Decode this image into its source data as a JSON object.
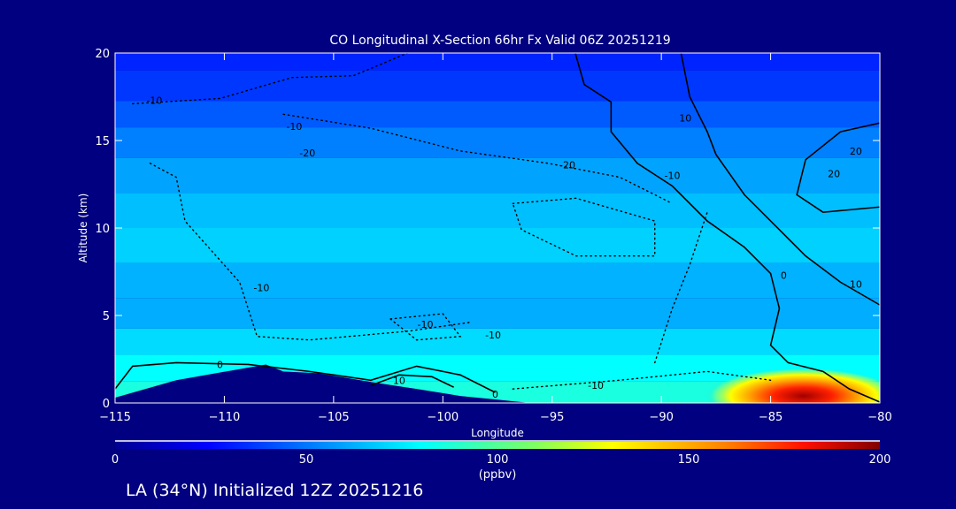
{
  "chart_data": {
    "type": "heatmap",
    "title": "CO Longitudinal X-Section 66hr  Fx Valid 06Z 20251219",
    "xlabel": "Longitude",
    "ylabel": "Altitude (km)",
    "xlim": [
      -115,
      -80
    ],
    "ylim": [
      0,
      20
    ],
    "xticks": [
      "-115",
      "-110",
      "-105",
      "-100",
      "-95",
      "-90",
      "-85",
      "-80"
    ],
    "xtick_values": [
      -115,
      -110,
      -105,
      -100,
      -95,
      -90,
      -85,
      -80
    ],
    "yticks": [
      "0",
      "5",
      "10",
      "15",
      "20"
    ],
    "ytick_values": [
      0,
      5,
      10,
      15,
      20
    ],
    "colorbar": {
      "label": "(ppbv)",
      "range": [
        0,
        200
      ],
      "ticks": [
        "0",
        "50",
        "100",
        "150",
        "200"
      ],
      "tick_values": [
        0,
        50,
        100,
        150,
        200
      ]
    },
    "field_profile": [
      {
        "alt": 20,
        "ppbv": 32
      },
      {
        "alt": 18,
        "ppbv": 36
      },
      {
        "alt": 16.5,
        "ppbv": 44
      },
      {
        "alt": 15,
        "ppbv": 52
      },
      {
        "alt": 13,
        "ppbv": 60
      },
      {
        "alt": 11,
        "ppbv": 66
      },
      {
        "alt": 9,
        "ppbv": 70
      },
      {
        "alt": 7,
        "ppbv": 63
      },
      {
        "alt": 5,
        "ppbv": 62
      },
      {
        "alt": 3.5,
        "ppbv": 72
      },
      {
        "alt": 2,
        "ppbv": 80
      },
      {
        "alt": 0.5,
        "ppbv": 86
      }
    ],
    "plume": {
      "lon": -83.5,
      "alt": 0.4,
      "peak_ppbv": 190
    },
    "terrain": [
      [
        -115,
        0
      ],
      [
        -115,
        0.3
      ],
      [
        -112.2,
        1.3
      ],
      [
        -108.1,
        2.2
      ],
      [
        -107.3,
        1.8
      ],
      [
        -105.7,
        1.7
      ],
      [
        -103.3,
        1.2
      ],
      [
        -101.2,
        0.8
      ],
      [
        -99.2,
        0.4
      ],
      [
        -97.6,
        0.2
      ],
      [
        -96,
        0
      ]
    ],
    "contours": [
      {
        "level": 0,
        "style": "solid",
        "points": [
          [
            -93.94,
            20
          ],
          [
            -93.53,
            18.2
          ],
          [
            -92.3,
            17.2
          ],
          [
            -92.3,
            15.5
          ],
          [
            -91.1,
            13.7
          ],
          [
            -89.5,
            12.4
          ],
          [
            -87.9,
            10.4
          ],
          [
            -86.2,
            8.9
          ],
          [
            -85.0,
            7.4
          ],
          [
            -84.6,
            5.4
          ],
          [
            -85,
            3.3
          ],
          [
            -84.2,
            2.3
          ],
          [
            -82.6,
            1.8
          ],
          [
            -81.4,
            0.8
          ],
          [
            -80,
            0.05
          ]
        ]
      },
      {
        "level": 10,
        "style": "solid",
        "points": [
          [
            -89.1,
            20
          ],
          [
            -88.7,
            17.5
          ],
          [
            -87.9,
            15.5
          ],
          [
            -87.5,
            14.2
          ],
          [
            -86.2,
            11.9
          ],
          [
            -84.6,
            9.9
          ],
          [
            -83.4,
            8.4
          ],
          [
            -81.8,
            6.9
          ],
          [
            -80,
            5.6
          ]
        ]
      },
      {
        "level": 20,
        "style": "solid",
        "points": [
          [
            -80,
            16
          ],
          [
            -81.8,
            15.5
          ],
          [
            -83.4,
            13.9
          ],
          [
            -83.8,
            11.9
          ],
          [
            -82.6,
            10.9
          ],
          [
            -80,
            11.2
          ]
        ]
      },
      {
        "level": 0,
        "style": "solid",
        "points": [
          [
            -115,
            0.8
          ],
          [
            -114.2,
            2.1
          ],
          [
            -112.2,
            2.3
          ],
          [
            -108.9,
            2.2
          ],
          [
            -106.1,
            1.8
          ],
          [
            -103.3,
            1.3
          ],
          [
            -101.2,
            2.1
          ],
          [
            -99.2,
            1.6
          ],
          [
            -97.6,
            0.6
          ]
        ]
      },
      {
        "level": 10,
        "style": "solid",
        "points": [
          [
            -103.3,
            1.0
          ],
          [
            -102,
            1.6
          ],
          [
            -100.5,
            1.5
          ],
          [
            -99.5,
            0.9
          ]
        ]
      },
      {
        "level": -10,
        "style": "dotted",
        "points": [
          [
            -114.2,
            17.1
          ],
          [
            -110.2,
            17.4
          ],
          [
            -106.9,
            18.6
          ],
          [
            -104.1,
            18.7
          ],
          [
            -101.6,
            20
          ]
        ]
      },
      {
        "level": -20,
        "style": "dotted",
        "points": [
          [
            -107.3,
            16.5
          ],
          [
            -103.3,
            15.7
          ],
          [
            -99.2,
            14.4
          ],
          [
            -95.2,
            13.7
          ],
          [
            -91.9,
            12.9
          ],
          [
            -89.5,
            11.4
          ]
        ]
      },
      {
        "level": -20,
        "style": "dotted",
        "points": [
          [
            -96.8,
            11.4
          ],
          [
            -93.9,
            11.7
          ],
          [
            -90.3,
            10.4
          ],
          [
            -90.3,
            8.4
          ],
          [
            -93.9,
            8.4
          ],
          [
            -96.4,
            9.9
          ],
          [
            -96.8,
            11.4
          ]
        ]
      },
      {
        "level": -10,
        "style": "dotted",
        "points": [
          [
            -113.4,
            13.7
          ],
          [
            -112.2,
            12.9
          ],
          [
            -111.8,
            10.4
          ],
          [
            -109.3,
            6.9
          ],
          [
            -108.5,
            3.8
          ],
          [
            -106.1,
            3.6
          ],
          [
            -101.6,
            4.1
          ],
          [
            -98.8,
            4.6
          ]
        ]
      },
      {
        "level": -10,
        "style": "dotted",
        "points": [
          [
            -102.4,
            4.8
          ],
          [
            -100,
            5.1
          ],
          [
            -99.2,
            3.8
          ],
          [
            -101.2,
            3.6
          ],
          [
            -102.4,
            4.8
          ]
        ]
      },
      {
        "level": -10,
        "style": "dotted",
        "points": [
          [
            -96.8,
            0.8
          ],
          [
            -91.9,
            1.3
          ],
          [
            -87.9,
            1.8
          ],
          [
            -85,
            1.3
          ]
        ]
      },
      {
        "level": -10,
        "style": "dotted",
        "points": [
          [
            -90.3,
            2.3
          ],
          [
            -89.5,
            5.4
          ],
          [
            -88.7,
            7.9
          ],
          [
            -87.9,
            10.9
          ]
        ]
      }
    ],
    "contour_labels": [
      {
        "text": "-10",
        "lon": -113.2,
        "alt": 17.3
      },
      {
        "text": "-10",
        "lon": -106.8,
        "alt": 15.8
      },
      {
        "text": "-20",
        "lon": -106.2,
        "alt": 14.3
      },
      {
        "text": "-20",
        "lon": -94.3,
        "alt": 13.6
      },
      {
        "text": "-10",
        "lon": -89.5,
        "alt": 13.0
      },
      {
        "text": "10",
        "lon": -88.9,
        "alt": 16.3
      },
      {
        "text": "20",
        "lon": -81.1,
        "alt": 14.4
      },
      {
        "text": "20",
        "lon": -82.1,
        "alt": 13.1
      },
      {
        "text": "-10",
        "lon": -108.3,
        "alt": 6.6
      },
      {
        "text": "-10",
        "lon": -100.8,
        "alt": 4.5
      },
      {
        "text": "-10",
        "lon": -97.7,
        "alt": 3.9
      },
      {
        "text": "0",
        "lon": -110.2,
        "alt": 2.2
      },
      {
        "text": "10",
        "lon": -102,
        "alt": 1.3
      },
      {
        "text": "0",
        "lon": -97.6,
        "alt": 0.5
      },
      {
        "text": "-10",
        "lon": -93,
        "alt": 1.0
      },
      {
        "text": "0",
        "lon": -84.4,
        "alt": 7.3
      },
      {
        "text": "10",
        "lon": -81.1,
        "alt": 6.8
      }
    ]
  },
  "footer": "LA (34°N) Initialized 12Z 20251216"
}
